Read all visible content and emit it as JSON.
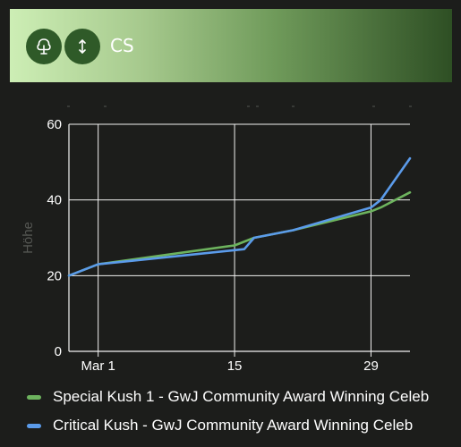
{
  "header": {
    "title": "CS",
    "buttons": [
      {
        "icon": "tree-icon"
      },
      {
        "icon": "vertical-arrows-icon"
      }
    ],
    "gradient_colors": [
      "#cdeeb5",
      "#2e4f24"
    ],
    "button_color": "#2f5a28"
  },
  "chart_data": {
    "type": "line",
    "ylabel": "Höhe",
    "xlabel": "",
    "ylim": [
      0,
      60
    ],
    "xlim": [
      "2023-02-26",
      "2023-04-02"
    ],
    "y_ticks": [
      0,
      20,
      40,
      60
    ],
    "x_ticks": [
      {
        "date": "2023-03-01",
        "label": "Mar 1"
      },
      {
        "date": "2023-03-15",
        "label": "15"
      },
      {
        "date": "2023-03-29",
        "label": "29"
      }
    ],
    "grid": true,
    "legend_position": "bottom",
    "series": [
      {
        "name": "Special Kush 1 - GwJ Community Award Winning Celeb",
        "color": "#6db35e",
        "points": [
          {
            "x": "2023-02-26",
            "y": 20
          },
          {
            "x": "2023-03-01",
            "y": 23
          },
          {
            "x": "2023-03-15",
            "y": 28
          },
          {
            "x": "2023-03-17",
            "y": 30
          },
          {
            "x": "2023-03-21",
            "y": 32
          },
          {
            "x": "2023-03-29",
            "y": 37
          },
          {
            "x": "2023-03-30",
            "y": 38
          },
          {
            "x": "2023-04-02",
            "y": 42
          }
        ]
      },
      {
        "name": "Critical Kush - GwJ Community Award Winning Celeb",
        "color": "#5b9bea",
        "points": [
          {
            "x": "2023-02-26",
            "y": 20
          },
          {
            "x": "2023-03-01",
            "y": 23
          },
          {
            "x": "2023-03-16",
            "y": 27
          },
          {
            "x": "2023-03-17",
            "y": 30
          },
          {
            "x": "2023-03-21",
            "y": 32
          },
          {
            "x": "2023-03-29",
            "y": 38
          },
          {
            "x": "2023-03-30",
            "y": 40
          },
          {
            "x": "2023-04-02",
            "y": 51
          }
        ]
      }
    ]
  }
}
